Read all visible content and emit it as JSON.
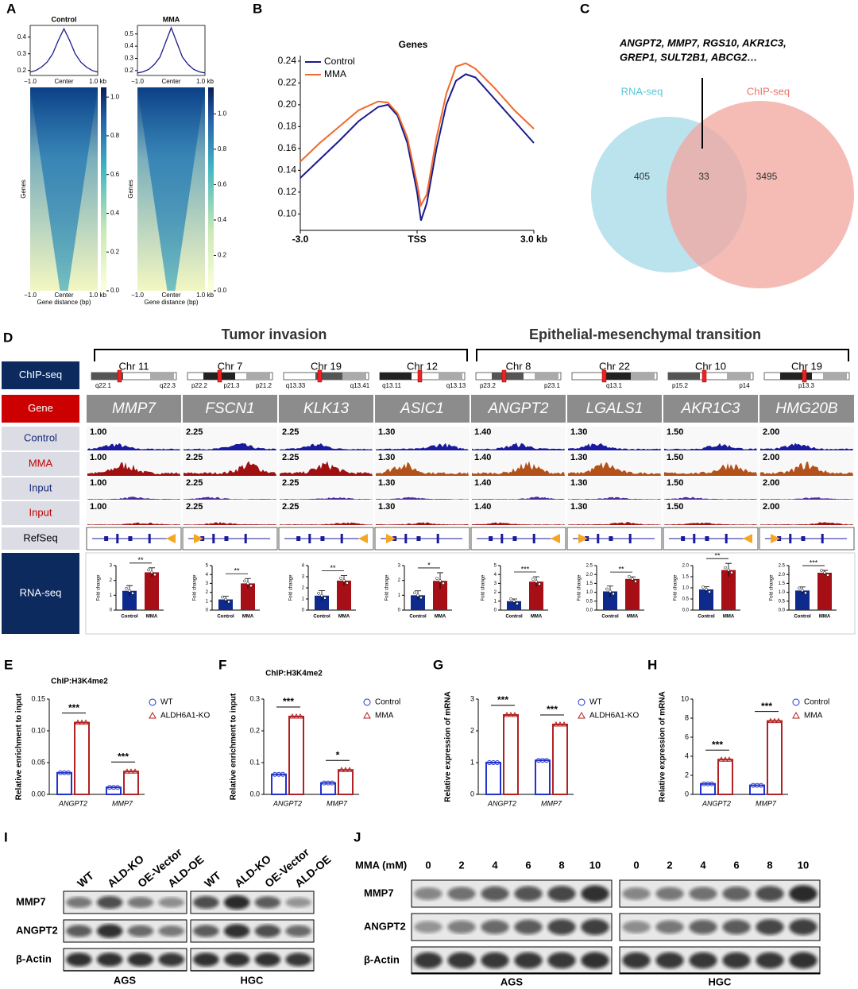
{
  "A": {
    "label": "A",
    "ylabel": "Genes",
    "xlabel": "Gene distance (bp)",
    "xlabels": [
      "−1.0",
      "Center",
      "1.0 kb"
    ],
    "maps": [
      {
        "title": "Control",
        "profile": {
          "x": [
            -1,
            -0.8333,
            -0.6667,
            -0.5,
            -0.3333,
            -0.1667,
            0,
            0.1667,
            0.3333,
            0.5,
            0.6667,
            0.8333,
            1
          ],
          "values": [
            0.19,
            0.2,
            0.22,
            0.25,
            0.3,
            0.38,
            0.45,
            0.38,
            0.3,
            0.25,
            0.22,
            0.2,
            0.19
          ],
          "xlim": [
            -1,
            1
          ],
          "ylim": [
            0.17,
            0.47
          ],
          "yticks": [
            0.2,
            0.3,
            0.4
          ]
        },
        "colorbar": {
          "lim": [
            0,
            1.05
          ],
          "ticks": [
            {
              "value": 0,
              "label": "0.0"
            },
            0.2,
            0.4,
            0.6,
            0.8,
            {
              "value": 1,
              "label": "1.0"
            }
          ]
        }
      },
      {
        "title": "MMA",
        "profile": {
          "x": [
            -1,
            -0.8333,
            -0.6667,
            -0.5,
            -0.3333,
            -0.1667,
            0,
            0.1667,
            0.3333,
            0.5,
            0.6667,
            0.8333,
            1
          ],
          "values": [
            0.18,
            0.19,
            0.21,
            0.25,
            0.31,
            0.43,
            0.55,
            0.43,
            0.31,
            0.25,
            0.21,
            0.19,
            0.18
          ],
          "xlim": [
            -1,
            1
          ],
          "ylim": [
            0.16,
            0.57
          ],
          "yticks": [
            0.2,
            0.3,
            0.4,
            0.5
          ]
        },
        "colorbar": {
          "lim": [
            0,
            1.15
          ],
          "ticks": [
            {
              "value": 0,
              "label": "0.0"
            },
            0.2,
            0.4,
            0.6,
            0.8,
            {
              "value": 1,
              "label": "1.0"
            }
          ]
        }
      }
    ]
  },
  "B": {
    "label": "B",
    "type": "line",
    "title": "Genes",
    "x": [
      -3,
      -2.5,
      -2,
      -1.5,
      -1,
      -0.75,
      -0.5,
      -0.25,
      0,
      0.1,
      0.25,
      0.5,
      0.75,
      1,
      1.25,
      1.5,
      2,
      2.5,
      3
    ],
    "series": [
      {
        "name": "Control",
        "color": "#1a1a8c",
        "values": [
          0.133,
          0.15,
          0.167,
          0.185,
          0.198,
          0.2,
          0.19,
          0.165,
          0.12,
          0.094,
          0.11,
          0.16,
          0.2,
          0.222,
          0.228,
          0.225,
          0.205,
          0.185,
          0.165
        ]
      },
      {
        "name": "MMA",
        "color": "#f06a2a",
        "values": [
          0.148,
          0.165,
          0.18,
          0.195,
          0.203,
          0.202,
          0.192,
          0.17,
          0.128,
          0.108,
          0.118,
          0.17,
          0.21,
          0.235,
          0.238,
          0.233,
          0.215,
          0.195,
          0.178
        ]
      }
    ],
    "xlim": [
      -3,
      3
    ],
    "xticks": [
      {
        "value": -3,
        "label": "-3.0"
      },
      {
        "value": 0,
        "label": "TSS"
      },
      {
        "value": 3,
        "label": "3.0 kb"
      }
    ],
    "ylim": [
      0.085,
      0.245
    ],
    "yticks": [
      {
        "value": 0.1,
        "label": "0.10"
      },
      0.12,
      0.14,
      0.16,
      0.18,
      {
        "value": 0.2,
        "label": "0.20"
      },
      0.22,
      0.24
    ]
  },
  "C": {
    "label": "C",
    "genes_line1": "ANGPT2,  MMP7,  RGS10,  AKR1C3,",
    "genes_line2": "GREP1,  SULT2B1,  ABCG2…",
    "sets": [
      "RNA-seq",
      "ChIP-seq"
    ],
    "counts": [
      405,
      33,
      3495
    ]
  },
  "D": {
    "label": "D",
    "groups": [
      "Tumor invasion",
      "Epithelial-mesenchymal transition"
    ],
    "rows": [
      "ChIP-seq",
      "Gene",
      "Control",
      "MMA",
      "Input",
      "Input",
      "RefSeq",
      "RNA-seq"
    ],
    "bar_ylabel": "Fold change",
    "bar_labels": [
      "Control",
      "MMA"
    ],
    "genes": [
      {
        "name": "MMP7",
        "chr": "Chr 11",
        "bands": [
          "q22.1",
          "q22.3"
        ],
        "scale": "1.00",
        "values": [
          1.3,
          2.55
        ],
        "errors": [
          0.35,
          0.3
        ],
        "sig": "**",
        "ylim": [
          0,
          3
        ],
        "yticks": [
          0,
          1,
          2,
          3
        ]
      },
      {
        "name": "FSCN1",
        "chr": "Chr 7",
        "bands": [
          "p22.2",
          "p21.3",
          "p21.2"
        ],
        "scale": "2.25",
        "values": [
          1.2,
          3.0
        ],
        "errors": [
          0.35,
          0.55
        ],
        "sig": "**",
        "ylim": [
          0,
          5
        ],
        "yticks": [
          0,
          1,
          2,
          3,
          4,
          5
        ]
      },
      {
        "name": "KLK13",
        "chr": "Chr 19",
        "bands": [
          "q13.33",
          "q13.41"
        ],
        "scale": "2.25",
        "values": [
          1.3,
          2.65
        ],
        "errors": [
          0.45,
          0.45
        ],
        "sig": "**",
        "ylim": [
          0,
          4
        ],
        "yticks": [
          0,
          1,
          2,
          3,
          4
        ]
      },
      {
        "name": "ASIC1",
        "chr": "Chr 12",
        "bands": [
          "q13.11",
          "q13.13"
        ],
        "scale": "1.30",
        "values": [
          1.0,
          1.97
        ],
        "errors": [
          0.3,
          0.55
        ],
        "sig": "*",
        "ylim": [
          0,
          3
        ],
        "yticks": [
          0,
          1,
          2,
          3
        ]
      },
      {
        "name": "ANGPT2",
        "chr": "Chr 8",
        "bands": [
          "p23.2",
          "p23.1"
        ],
        "scale": "1.40",
        "values": [
          1.0,
          3.2
        ],
        "errors": [
          0.25,
          0.55
        ],
        "sig": "***",
        "ylim": [
          0,
          5
        ],
        "yticks": [
          0,
          1,
          2,
          3,
          4,
          5
        ]
      },
      {
        "name": "LGALS1",
        "chr": "Chr 22",
        "bands": [
          "q13.1"
        ],
        "scale": "1.30",
        "values": [
          1.05,
          1.75
        ],
        "errors": [
          0.3,
          0.12
        ],
        "sig": "**",
        "ylim": [
          0,
          2.5
        ],
        "yticks": [
          {
            "value": 0,
            "label": "0.0"
          },
          0.5,
          {
            "value": 1,
            "label": "1.0"
          },
          1.5,
          {
            "value": 2,
            "label": "2.0"
          },
          2.5
        ]
      },
      {
        "name": "AKR1C3",
        "chr": "Chr 10",
        "bands": [
          "p15.2",
          "p14"
        ],
        "scale": "1.50",
        "values": [
          0.93,
          1.8
        ],
        "errors": [
          0.12,
          0.3
        ],
        "sig": "**",
        "ylim": [
          0,
          2
        ],
        "yticks": [
          {
            "value": 0,
            "label": "0.0"
          },
          0.5,
          {
            "value": 1,
            "label": "1.0"
          },
          1.5,
          {
            "value": 2,
            "label": "2.0"
          }
        ]
      },
      {
        "name": "HMG20B",
        "chr": "Chr 19",
        "bands": [
          "p13.3"
        ],
        "scale": "2.00",
        "values": [
          1.1,
          2.1
        ],
        "errors": [
          0.2,
          0.13
        ],
        "sig": "***",
        "ylim": [
          0,
          2.5
        ],
        "yticks": [
          {
            "value": 0,
            "label": "0.0"
          },
          0.5,
          {
            "value": 1,
            "label": "1.0"
          },
          1.5,
          {
            "value": 2,
            "label": "2.0"
          },
          2.5
        ]
      }
    ]
  },
  "EFGH": [
    {
      "label": "E",
      "title": "ChIP:H3K4me2",
      "ylabel": "Relative enrichment to input",
      "categories": [
        "ANGPT2",
        "MMP7"
      ],
      "series": [
        {
          "name": "WT",
          "color": "#2233cc",
          "values": [
            0.034,
            0.011
          ]
        },
        {
          "name": "ALDH6A1-KO",
          "color": "#b22222",
          "values": [
            0.113,
            0.036
          ]
        }
      ],
      "sig": [
        "***",
        "***"
      ],
      "ylim": [
        0,
        0.15
      ],
      "yticks": [
        {
          "value": 0,
          "label": "0.00"
        },
        0.05,
        {
          "value": 0.1,
          "label": "0.10"
        },
        0.15
      ]
    },
    {
      "label": "F",
      "title": "ChIP:H3K4me2",
      "ylabel": "Relative enrichment to input",
      "categories": [
        "ANGPT2",
        "MMP7"
      ],
      "series": [
        {
          "name": "Control",
          "color": "#2233cc",
          "values": [
            0.063,
            0.036
          ]
        },
        {
          "name": "MMA",
          "color": "#b22222",
          "values": [
            0.245,
            0.077
          ]
        }
      ],
      "sig": [
        "***",
        "*"
      ],
      "ylim": [
        0,
        0.3
      ],
      "yticks": [
        {
          "value": 0,
          "label": "0.0"
        },
        0.1,
        0.2,
        0.3
      ]
    },
    {
      "label": "G",
      "ylabel": "Relative expression of mRNA",
      "categories": [
        "ANGPT2",
        "MMP7"
      ],
      "series": [
        {
          "name": "WT",
          "color": "#2233cc",
          "values": [
            1.0,
            1.07
          ]
        },
        {
          "name": "ALDH6A1-KO",
          "color": "#b22222",
          "values": [
            2.5,
            2.2
          ]
        }
      ],
      "sig": [
        "***",
        "***"
      ],
      "ylim": [
        0,
        3
      ],
      "yticks": [
        0,
        1,
        2,
        3
      ]
    },
    {
      "label": "H",
      "ylabel": "Relative expression of mRNA",
      "categories": [
        "ANGPT2",
        "MMP7"
      ],
      "series": [
        {
          "name": "Control",
          "color": "#2233cc",
          "values": [
            1.1,
            0.95
          ]
        },
        {
          "name": "MMA",
          "color": "#b22222",
          "values": [
            3.65,
            7.7
          ]
        }
      ],
      "sig": [
        "***",
        "***"
      ],
      "ylim": [
        0,
        10
      ],
      "yticks": [
        0,
        2,
        4,
        6,
        8,
        10
      ]
    }
  ],
  "I": {
    "label": "I",
    "lanes": [
      "WT",
      "ALD-KO",
      "OE-Vector",
      "ALD-OE"
    ],
    "proteins": [
      "MMP7",
      "ANGPT2",
      "β-Actin"
    ],
    "cells": [
      "AGS",
      "HGC"
    ]
  },
  "J": {
    "label": "J",
    "dose_label": "MMA (mM)",
    "doses": [
      0,
      2,
      4,
      6,
      8,
      10
    ],
    "proteins": [
      "MMP7",
      "ANGPT2",
      "β-Actin"
    ],
    "cells": [
      "AGS",
      "HGC"
    ]
  }
}
